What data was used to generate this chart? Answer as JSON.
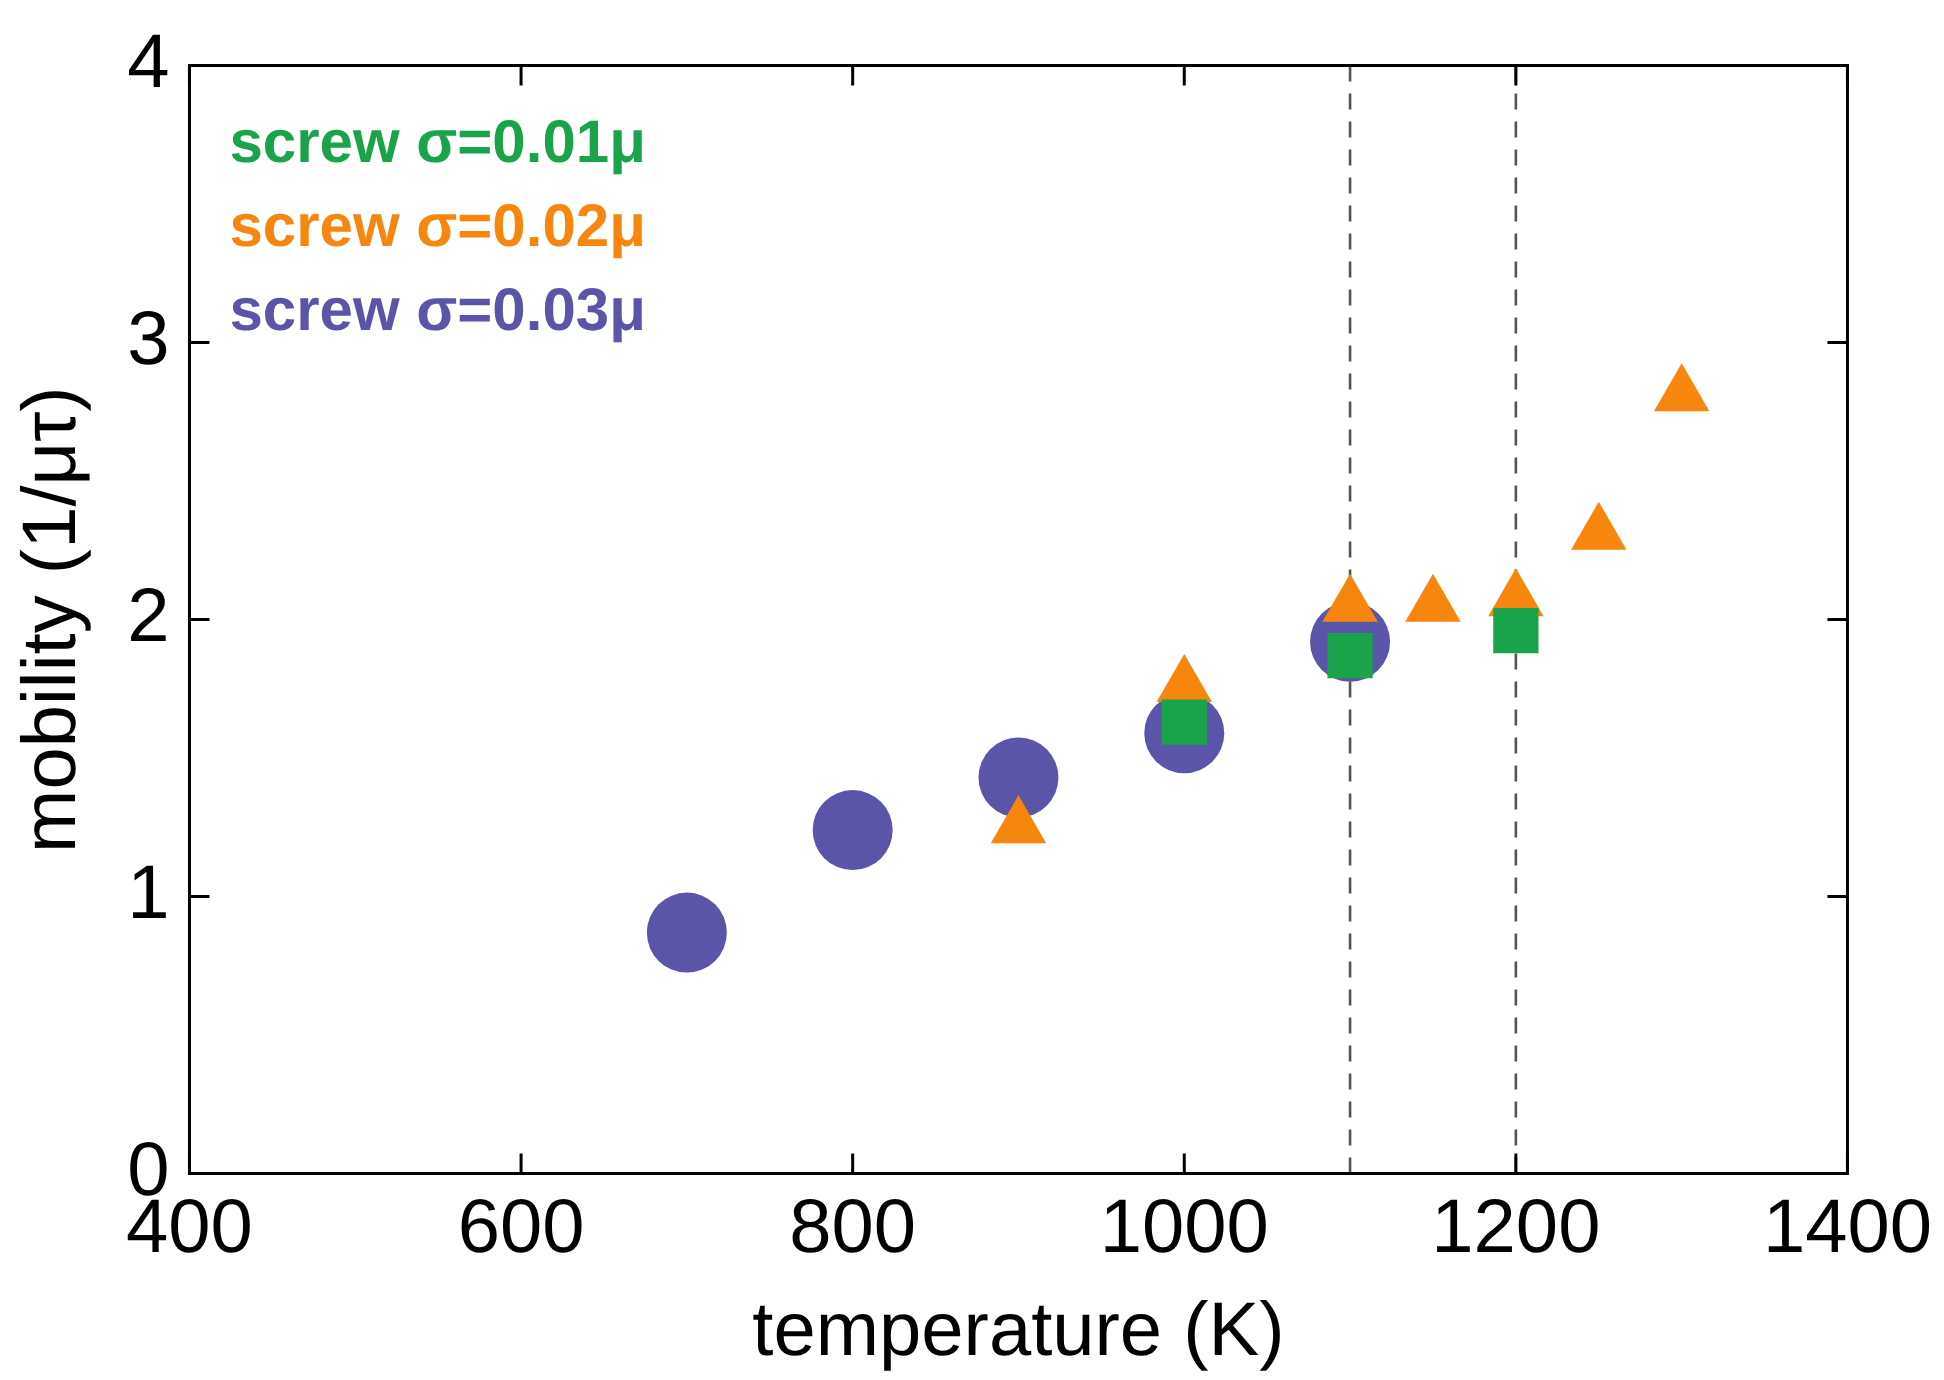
{
  "chart_data": {
    "type": "scatter",
    "xlabel": "temperature (K)",
    "ylabel": "mobility (1/μτ)",
    "xlim": [
      400,
      1400
    ],
    "xticks": [
      400,
      600,
      800,
      1000,
      1200,
      1400
    ],
    "ylim": [
      0,
      4
    ],
    "yticks": [
      0,
      1,
      2,
      3,
      4
    ],
    "grid": false,
    "legend": "top left",
    "series": [
      {
        "name": "screw σ=0.01μ",
        "color": "#1aa34a",
        "marker": "square",
        "x": [
          1000,
          1100,
          1200
        ],
        "values": [
          1.63,
          1.87,
          1.96
        ]
      },
      {
        "name": "screw σ=0.02μ",
        "color": "#f7860f",
        "marker": "triangle",
        "x": [
          900,
          1000,
          1100,
          1150,
          1200,
          1250,
          1300
        ],
        "values": [
          1.25,
          1.76,
          2.05,
          2.05,
          2.07,
          2.31,
          2.81
        ]
      },
      {
        "name": "screw σ=0.03μ",
        "color": "#5a55a8",
        "marker": "circle",
        "x": [
          700,
          800,
          900,
          1000,
          1100
        ],
        "values": [
          0.87,
          1.24,
          1.43,
          1.59,
          1.92
        ]
      }
    ],
    "ref_lines": [
      {
        "axis": "x",
        "value": 1100,
        "line_style": "dashed",
        "color": "#555555"
      },
      {
        "axis": "x",
        "value": 1200,
        "line_style": "dashed",
        "color": "#555555"
      }
    ]
  }
}
